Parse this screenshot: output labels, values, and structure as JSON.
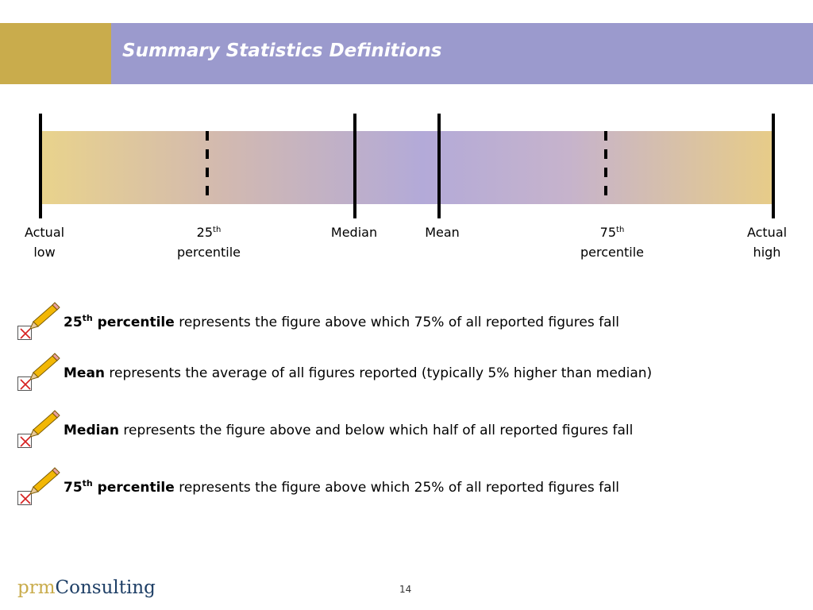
{
  "slide": {
    "title": "Summary Statistics Definitions",
    "page_number": "14"
  },
  "range_bar": {
    "markers": [
      {
        "label_line1": "Actual",
        "label_line2": "low"
      },
      {
        "label_line1": "25",
        "label_sup": "th",
        "label_line2": "percentile"
      },
      {
        "label_line1": "Median"
      },
      {
        "label_line1": "Mean"
      },
      {
        "label_line1": "75",
        "label_sup": "th",
        "label_line2": "percentile"
      },
      {
        "label_line1": "Actual",
        "label_line2": "high"
      }
    ]
  },
  "definitions": [
    {
      "term": "25",
      "term_sup": "th",
      "term_rest": " percentile",
      "text": " represents the figure above which 75% of all reported figures fall"
    },
    {
      "term": "Mean",
      "term_sup": "",
      "term_rest": "",
      "text": " represents the average of all figures reported (typically 5% higher than median)"
    },
    {
      "term": "Median",
      "term_sup": "",
      "term_rest": "",
      "text": " represents the figure above and below which half of all reported figures fall"
    },
    {
      "term": "75",
      "term_sup": "th",
      "term_rest": " percentile",
      "text": " represents the figure above which 25% of all reported figures fall"
    }
  ],
  "footer": {
    "logo_prm": "prm",
    "logo_consulting": "Consulting"
  },
  "colors": {
    "title_band": "#9b9acd",
    "gold_block": "#c9ac4c",
    "logo_prm": "#c9ac4c",
    "logo_consulting": "#1e3f66"
  }
}
